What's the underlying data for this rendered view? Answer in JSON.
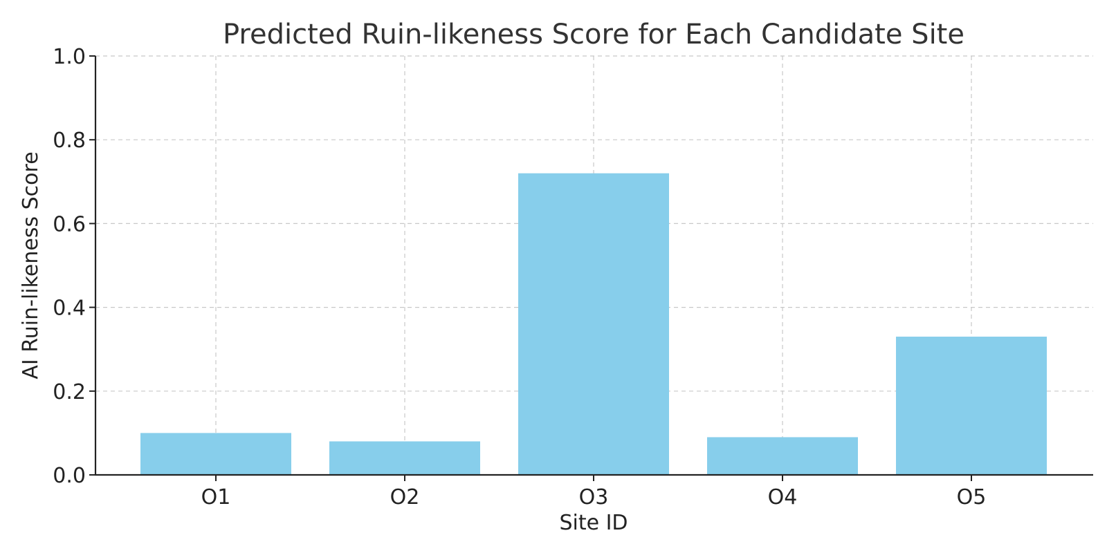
{
  "chart_data": {
    "type": "bar",
    "title": "Predicted Ruin-likeness Score for Each Candidate Site",
    "xlabel": "Site ID",
    "ylabel": "AI Ruin-likeness Score",
    "categories": [
      "O1",
      "O2",
      "O3",
      "O4",
      "O5"
    ],
    "values": [
      0.1,
      0.08,
      0.72,
      0.09,
      0.33
    ],
    "ylim": [
      0,
      1.0
    ],
    "yticks": [
      "0.0",
      "0.2",
      "0.4",
      "0.6",
      "0.8",
      "1.0"
    ],
    "grid": true,
    "bar_color": "#87CEEB"
  }
}
